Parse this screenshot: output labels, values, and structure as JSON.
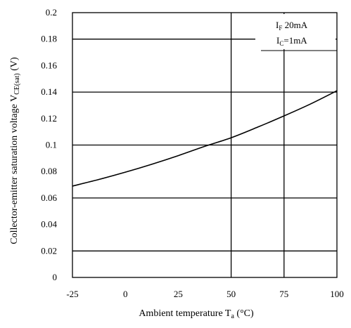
{
  "chart_data": {
    "type": "line",
    "title": "",
    "xlabel": "Ambient temperature T",
    "xlabel_sub": "a",
    "xlabel_unit": " (°C)",
    "ylabel": "Collector-emitter saturation voltage V",
    "ylabel_sub": "CE(sat)",
    "ylabel_unit": " (V)",
    "xlim": [
      -25,
      100
    ],
    "ylim": [
      0,
      0.2
    ],
    "x_ticks": [
      -25,
      0,
      25,
      50,
      75,
      100
    ],
    "x_tick_labels": [
      "-25",
      "0",
      "25",
      "50",
      "75",
      "100"
    ],
    "y_ticks": [
      0,
      0.02,
      0.04,
      0.06,
      0.08,
      0.1,
      0.12,
      0.14,
      0.16,
      0.18,
      0.2
    ],
    "y_tick_labels": [
      "0",
      "0.02",
      "0.04",
      "0.06",
      "0.08",
      "0.1",
      "0.12",
      "0.14",
      "0.16",
      "0.18",
      "0.2"
    ],
    "x_gridlines": [
      50,
      75
    ],
    "y_gridlines": [
      0.02,
      0.06,
      0.1,
      0.14,
      0.18
    ],
    "series": [
      {
        "x": [
          -25,
          -12.5,
          0,
          12.5,
          25,
          37.5,
          50,
          62.5,
          75,
          87.5,
          100
        ],
        "y": [
          0.069,
          0.074,
          0.0795,
          0.0855,
          0.092,
          0.099,
          0.1055,
          0.1135,
          0.122,
          0.131,
          0.141
        ]
      }
    ],
    "annotation_lines": [
      {
        "main": "I",
        "sub": "F",
        "rest": "  20mA"
      },
      {
        "main": "I",
        "sub": "C",
        "rest": "=1mA"
      }
    ],
    "grid": true,
    "legend": "top-right"
  },
  "colors": {
    "line": "#000000",
    "grid": "#000000",
    "background": "#ffffff"
  }
}
